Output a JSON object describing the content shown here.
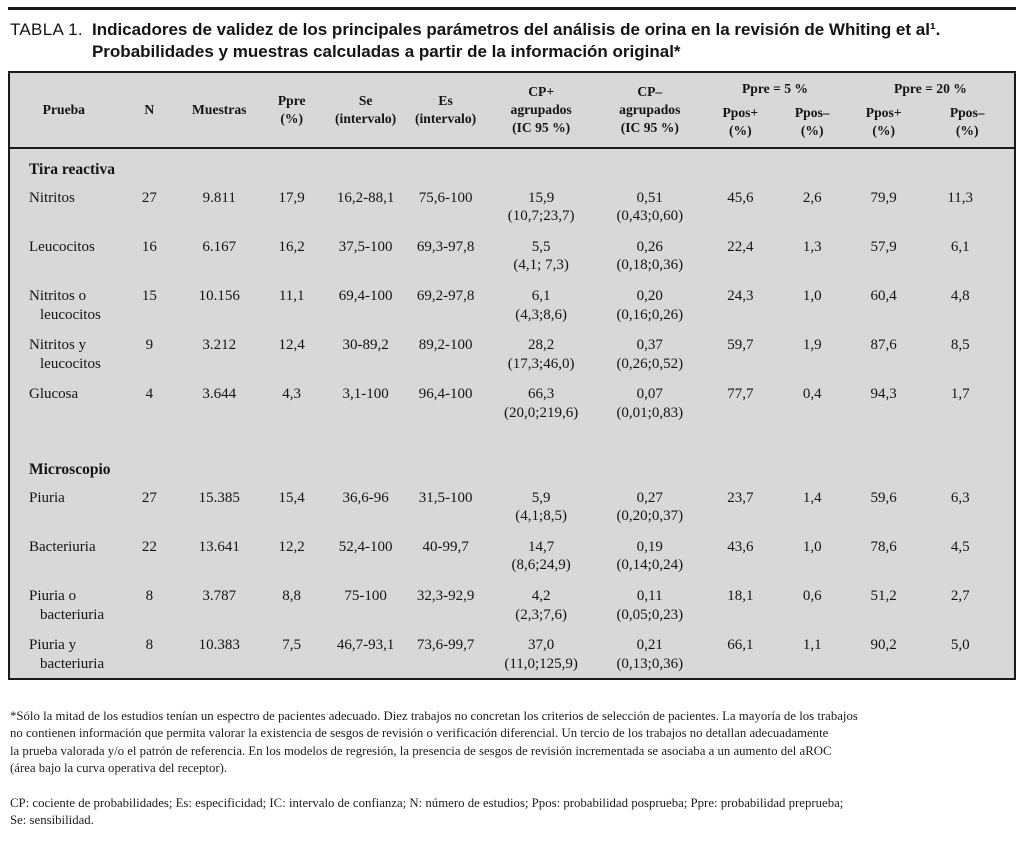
{
  "colors": {
    "table_background": "#d8d8d8",
    "rule_and_border": "#1a1a1a",
    "text": "#141414",
    "page_background": "#ffffff"
  },
  "title": {
    "label": "TABLA 1.",
    "line1": "Indicadores de validez de los principales parámetros del análisis de orina en la revisión de Whiting et al¹.",
    "line2": "Probabilidades y muestras calculadas a partir de la información original*"
  },
  "table": {
    "header": {
      "prueba": "Prueba",
      "n": "N",
      "muestras": "Muestras",
      "ppre": "Ppre\n(%)",
      "se": "Se\n(intervalo)",
      "es": "Es\n(intervalo)",
      "cp_pos": "CP+\nagrupados\n(IC 95 %)",
      "cp_neg": "CP–\nagrupados\n(IC 95 %)",
      "group5": "Ppre = 5 %",
      "group20": "Ppre = 20 %",
      "ppos_pos": "Ppos+\n(%)",
      "ppos_neg": "Ppos–\n(%)"
    },
    "sections": [
      {
        "name": "Tira reactiva",
        "rows": [
          {
            "prueba": [
              "Nitritos"
            ],
            "n": "27",
            "muestras": "9.811",
            "ppre": "17,9",
            "se": "16,2-88,1",
            "es": "75,6-100",
            "cp_pos": [
              "15,9",
              "(10,7;23,7)"
            ],
            "cp_neg": [
              "0,51",
              "(0,43;0,60)"
            ],
            "ppos5_pos": "45,6",
            "ppos5_neg": "2,6",
            "ppos20_pos": "79,9",
            "ppos20_neg": "11,3"
          },
          {
            "prueba": [
              "Leucocitos"
            ],
            "n": "16",
            "muestras": "6.167",
            "ppre": "16,2",
            "se": "37,5-100",
            "es": "69,3-97,8",
            "cp_pos": [
              "5,5",
              "(4,1; 7,3)"
            ],
            "cp_neg": [
              "0,26",
              "(0,18;0,36)"
            ],
            "ppos5_pos": "22,4",
            "ppos5_neg": "1,3",
            "ppos20_pos": "57,9",
            "ppos20_neg": "6,1"
          },
          {
            "prueba": [
              "Nitritos o",
              "leucocitos"
            ],
            "n": "15",
            "muestras": "10.156",
            "ppre": "11,1",
            "se": "69,4-100",
            "es": "69,2-97,8",
            "cp_pos": [
              "6,1",
              "(4,3;8,6)"
            ],
            "cp_neg": [
              "0,20",
              "(0,16;0,26)"
            ],
            "ppos5_pos": "24,3",
            "ppos5_neg": "1,0",
            "ppos20_pos": "60,4",
            "ppos20_neg": "4,8"
          },
          {
            "prueba": [
              "Nitritos y",
              "leucocitos"
            ],
            "n": "9",
            "muestras": "3.212",
            "ppre": "12,4",
            "se": "30-89,2",
            "es": "89,2-100",
            "cp_pos": [
              "28,2",
              "(17,3;46,0)"
            ],
            "cp_neg": [
              "0,37",
              "(0,26;0,52)"
            ],
            "ppos5_pos": "59,7",
            "ppos5_neg": "1,9",
            "ppos20_pos": "87,6",
            "ppos20_neg": "8,5"
          },
          {
            "prueba": [
              "Glucosa"
            ],
            "n": "4",
            "muestras": "3.644",
            "ppre": "4,3",
            "se": "3,1-100",
            "es": "96,4-100",
            "cp_pos": [
              "66,3",
              "(20,0;219,6)"
            ],
            "cp_neg": [
              "0,07",
              "(0,01;0,83)"
            ],
            "ppos5_pos": "77,7",
            "ppos5_neg": "0,4",
            "ppos20_pos": "94,3",
            "ppos20_neg": "1,7"
          }
        ]
      },
      {
        "name": "Microscopio",
        "rows": [
          {
            "prueba": [
              "Piuria"
            ],
            "n": "27",
            "muestras": "15.385",
            "ppre": "15,4",
            "se": "36,6-96",
            "es": "31,5-100",
            "cp_pos": [
              "5,9",
              "(4,1;8,5)"
            ],
            "cp_neg": [
              "0,27",
              "(0,20;0,37)"
            ],
            "ppos5_pos": "23,7",
            "ppos5_neg": "1,4",
            "ppos20_pos": "59,6",
            "ppos20_neg": "6,3"
          },
          {
            "prueba": [
              "Bacteriuria"
            ],
            "n": "22",
            "muestras": "13.641",
            "ppre": "12,2",
            "se": "52,4-100",
            "es": "40-99,7",
            "cp_pos": [
              "14,7",
              "(8,6;24,9)"
            ],
            "cp_neg": [
              "0,19",
              "(0,14;0,24)"
            ],
            "ppos5_pos": "43,6",
            "ppos5_neg": "1,0",
            "ppos20_pos": "78,6",
            "ppos20_neg": "4,5"
          },
          {
            "prueba": [
              "Piuria o",
              "bacteriuria"
            ],
            "n": "8",
            "muestras": "3.787",
            "ppre": "8,8",
            "se": "75-100",
            "es": "32,3-92,9",
            "cp_pos": [
              "4,2",
              "(2,3;7,6)"
            ],
            "cp_neg": [
              "0,11",
              "(0,05;0,23)"
            ],
            "ppos5_pos": "18,1",
            "ppos5_neg": "0,6",
            "ppos20_pos": "51,2",
            "ppos20_neg": "2,7"
          },
          {
            "prueba": [
              "Piuria y",
              "bacteriuria"
            ],
            "n": "8",
            "muestras": "10.383",
            "ppre": "7,5",
            "se": "46,7-93,1",
            "es": "73,6-99,7",
            "cp_pos": [
              "37,0",
              "(11,0;125,9)"
            ],
            "cp_neg": [
              "0,21",
              "(0,13;0,36)"
            ],
            "ppos5_pos": "66,1",
            "ppos5_neg": "1,1",
            "ppos20_pos": "90,2",
            "ppos20_neg": "5,0"
          }
        ]
      }
    ]
  },
  "footnotes": {
    "note1": "*Sólo la mitad de los estudios tenían un espectro de pacientes adecuado. Diez trabajos no concretan los criterios de selección de pacientes. La mayoría de los trabajos\nno contienen información que permita valorar la existencia de sesgos de revisión o verificación diferencial. Un tercio de los trabajos no detallan adecuadamente\nla prueba valorada y/o el patrón de referencia. En los modelos de regresión, la presencia de sesgos de revisión incrementada se asociaba a un aumento del aROC\n(área bajo la curva operativa del receptor).",
    "note2": "CP: cociente de probabilidades; Es: especificidad; IC: intervalo de confianza; N: número de estudios; Ppos: probabilidad posprueba; Ppre: probabilidad preprueba;\nSe: sensibilidad."
  }
}
